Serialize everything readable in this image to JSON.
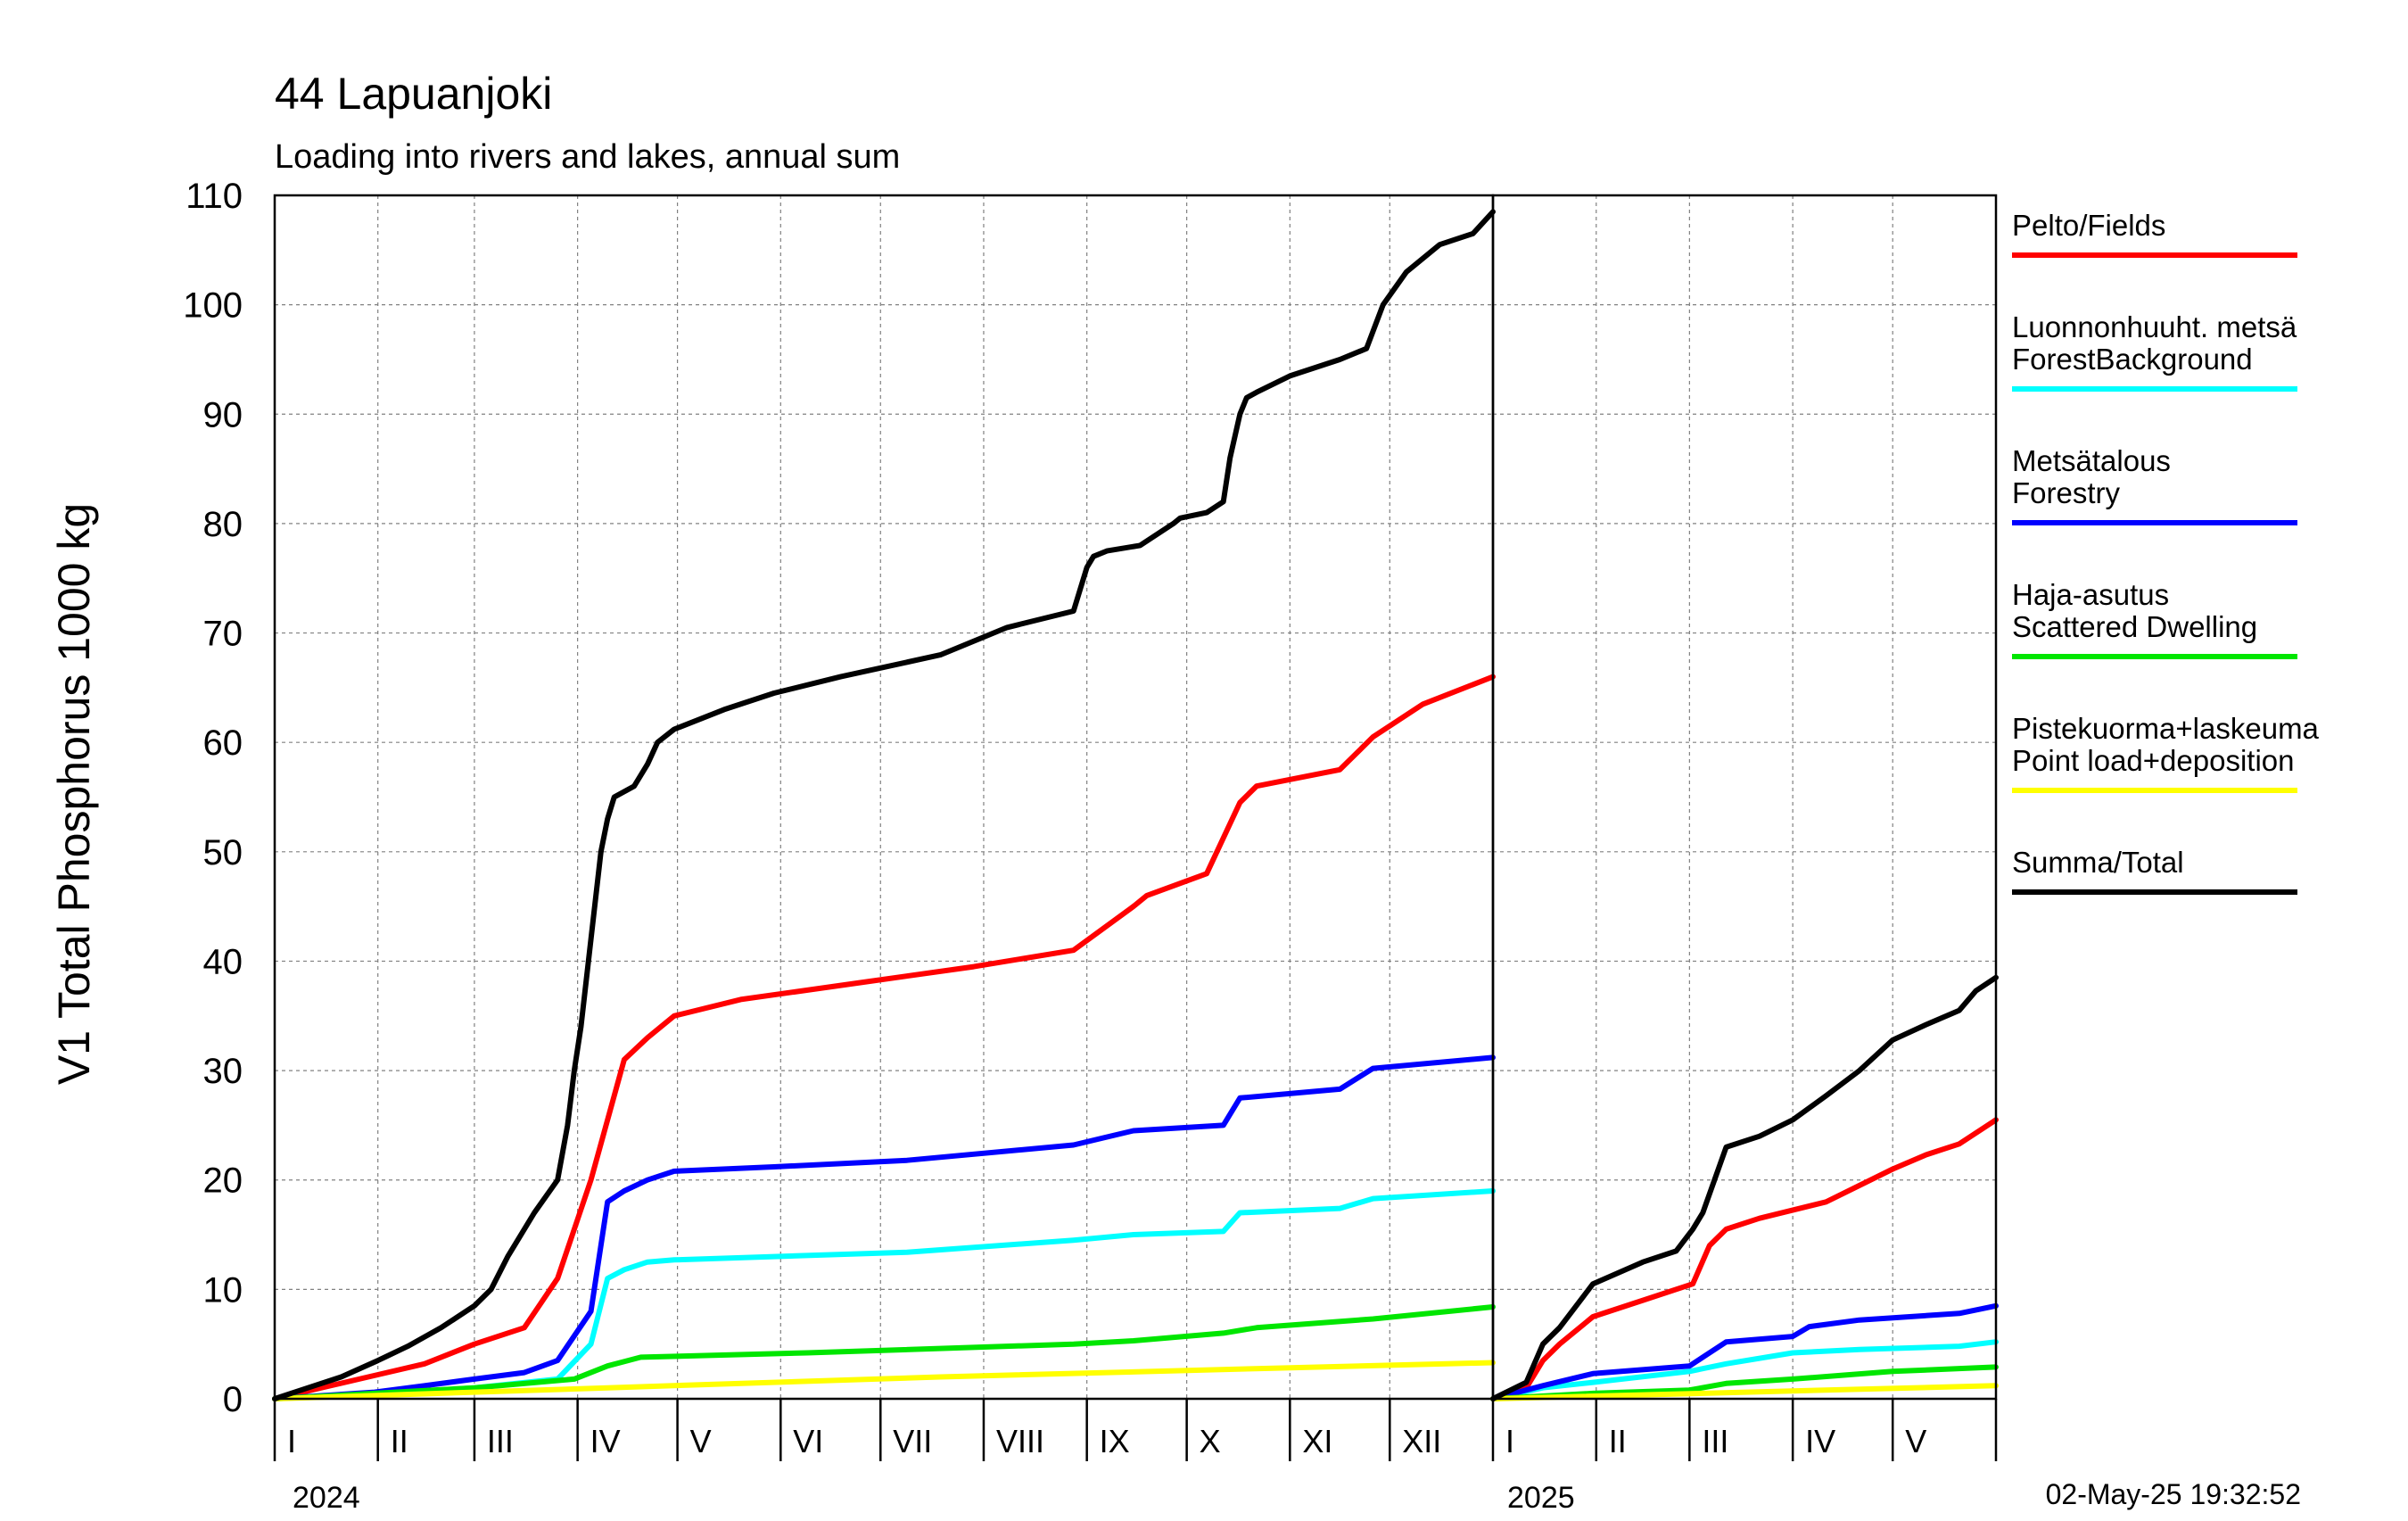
{
  "chart_data": {
    "type": "line",
    "title": "44 Lapuanjoki",
    "subtitle": "Loading into rivers and lakes, annual sum",
    "ylabel": "V1 Total Phosphorus 1000 kg",
    "ylim": [
      0,
      110
    ],
    "yticks": [
      0,
      10,
      20,
      30,
      40,
      50,
      60,
      70,
      80,
      90,
      100,
      110
    ],
    "grid": true,
    "legend_position": "right",
    "timestamp": "02-May-25 19:32:52",
    "panels": [
      {
        "year": "2024",
        "month_labels": [
          "I",
          "II",
          "III",
          "IV",
          "V",
          "VI",
          "VII",
          "VIII",
          "IX",
          "X",
          "XI",
          "XII"
        ],
        "month_days": [
          31,
          29,
          31,
          30,
          31,
          30,
          31,
          31,
          30,
          31,
          30,
          31
        ],
        "series": [
          {
            "key": "fields",
            "x": [
              0,
              14,
              31,
              45,
              60,
              75,
              85,
              95,
              105,
              112,
              120,
              140,
              175,
              210,
              240,
              258,
              262,
              280,
              290,
              295,
              320,
              330,
              345,
              366
            ],
            "y": [
              0,
              1,
              2.2,
              3.2,
              5,
              6.5,
              11,
              20,
              31,
              33,
              35,
              36.5,
              38,
              39.5,
              41,
              45,
              46,
              48,
              54.5,
              56,
              57.5,
              60.5,
              63.5,
              66
            ]
          },
          {
            "key": "forest_background",
            "x": [
              0,
              30,
              60,
              85,
              95,
              100,
              105,
              112,
              120,
              150,
              190,
              240,
              258,
              285,
              290,
              320,
              330,
              366
            ],
            "y": [
              0,
              0.4,
              1,
              1.8,
              5,
              11,
              11.8,
              12.5,
              12.7,
              13,
              13.4,
              14.5,
              15,
              15.3,
              17,
              17.4,
              18.3,
              19
            ]
          },
          {
            "key": "forestry",
            "x": [
              0,
              30,
              45,
              60,
              75,
              85,
              95,
              100,
              105,
              112,
              120,
              150,
              190,
              240,
              258,
              285,
              290,
              320,
              330,
              366
            ],
            "y": [
              0,
              0.6,
              1.2,
              1.8,
              2.4,
              3.5,
              8,
              18,
              19,
              20,
              20.8,
              21.2,
              21.8,
              23.2,
              24.5,
              25,
              27.5,
              28.3,
              30.2,
              31.2
            ]
          },
          {
            "key": "scattered_dwelling",
            "x": [
              0,
              30,
              60,
              90,
              100,
              110,
              160,
              240,
              258,
              285,
              295,
              330,
              366
            ],
            "y": [
              0,
              0.5,
              1,
              1.8,
              3,
              3.8,
              4.2,
              5,
              5.3,
              6,
              6.5,
              7.3,
              8.4
            ]
          },
          {
            "key": "point_load",
            "x": [
              0,
              100,
              200,
              300,
              366
            ],
            "y": [
              0,
              1,
              2,
              2.8,
              3.3
            ]
          },
          {
            "key": "total",
            "x": [
              0,
              10,
              20,
              31,
              40,
              50,
              60,
              65,
              70,
              78,
              85,
              88,
              90,
              92,
              95,
              98,
              100,
              102,
              105,
              108,
              112,
              115,
              120,
              135,
              150,
              170,
              200,
              220,
              240,
              244,
              246,
              250,
              260,
              270,
              272,
              280,
              285,
              287,
              290,
              292,
              295,
              305,
              320,
              328,
              333,
              340,
              350,
              360,
              366
            ],
            "y": [
              0,
              1,
              2,
              3.5,
              4.8,
              6.5,
              8.5,
              10,
              13,
              17,
              20,
              25,
              30,
              34,
              42,
              50,
              53,
              55,
              55.5,
              56,
              58,
              60,
              61.2,
              63,
              64.5,
              66,
              68,
              70.5,
              72,
              76,
              77,
              77.5,
              78,
              80,
              80.5,
              81,
              82,
              86,
              90,
              91.5,
              92,
              93.5,
              95,
              96,
              100,
              103,
              105.5,
              106.5,
              108.5
            ]
          }
        ]
      },
      {
        "year": "2025",
        "month_labels": [
          "I",
          "II",
          "III",
          "IV",
          "V"
        ],
        "month_days": [
          31,
          28,
          31,
          30,
          31
        ],
        "series": [
          {
            "key": "fields",
            "x": [
              0,
              10,
              15,
              20,
              30,
              45,
              60,
              65,
              70,
              80,
              100,
              120,
              130,
              140,
              150,
              151
            ],
            "y": [
              0,
              1,
              3.5,
              5,
              7.5,
              9,
              10.5,
              14,
              15.5,
              16.5,
              18,
              21,
              22.3,
              23.3,
              25.3,
              25.5
            ]
          },
          {
            "key": "forest_background",
            "x": [
              0,
              15,
              30,
              59,
              70,
              90,
              110,
              140,
              151
            ],
            "y": [
              0,
              1,
              1.5,
              2.5,
              3.2,
              4.2,
              4.5,
              4.8,
              5.2
            ]
          },
          {
            "key": "forestry",
            "x": [
              0,
              15,
              30,
              59,
              70,
              90,
              95,
              110,
              140,
              151
            ],
            "y": [
              0,
              1.2,
              2.3,
              3,
              5.2,
              5.7,
              6.6,
              7.2,
              7.8,
              8.5
            ]
          },
          {
            "key": "scattered_dwelling",
            "x": [
              0,
              30,
              59,
              70,
              90,
              120,
              151
            ],
            "y": [
              0,
              0.5,
              0.8,
              1.4,
              1.8,
              2.5,
              2.9
            ]
          },
          {
            "key": "point_load",
            "x": [
              0,
              151
            ],
            "y": [
              0,
              1.2
            ]
          },
          {
            "key": "total",
            "x": [
              0,
              10,
              15,
              20,
              30,
              45,
              55,
              60,
              63,
              70,
              80,
              90,
              100,
              110,
              120,
              130,
              140,
              145,
              151
            ],
            "y": [
              0,
              1.5,
              5,
              6.5,
              10.5,
              12.5,
              13.5,
              15.5,
              17,
              23,
              24,
              25.5,
              27.7,
              30,
              32.8,
              34.2,
              35.5,
              37.3,
              38.5
            ]
          }
        ]
      }
    ],
    "legend": [
      {
        "key": "fields",
        "lines": [
          "Pelto/Fields"
        ],
        "color": "#ff0000"
      },
      {
        "key": "forest_background",
        "lines": [
          "Luonnonhuuht. metsä",
          "ForestBackground"
        ],
        "color": "#00ffff"
      },
      {
        "key": "forestry",
        "lines": [
          "Metsätalous",
          "Forestry"
        ],
        "color": "#0000ff"
      },
      {
        "key": "scattered_dwelling",
        "lines": [
          "Haja-asutus",
          "Scattered Dwelling"
        ],
        "color": "#00e600"
      },
      {
        "key": "point_load",
        "lines": [
          "Pistekuorma+laskeuma",
          "Point load+deposition"
        ],
        "color": "#ffff00"
      },
      {
        "key": "total",
        "lines": [
          "Summa/Total"
        ],
        "color": "#000000"
      }
    ]
  }
}
